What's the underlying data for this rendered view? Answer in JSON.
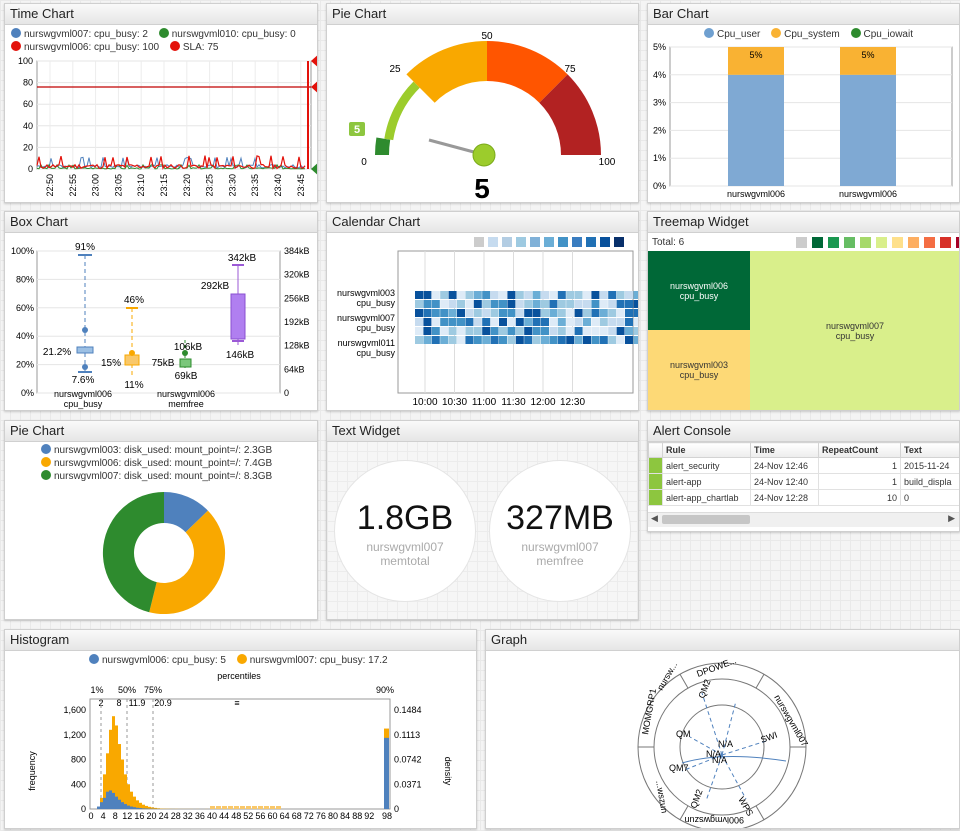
{
  "colors": {
    "blue": "#4f81bd",
    "orange": "#f9a800",
    "green": "#2e8b2e",
    "red": "#e3120b",
    "purple": "#b07ff0",
    "slaRed": "#c00000"
  },
  "time_chart": {
    "title": "Time Chart",
    "legend": [
      "nurswgvml007: cpu_busy: 2",
      "nurswgvml010: cpu_busy: 0",
      "nurswgvml006: cpu_busy: 100",
      "SLA: 75"
    ],
    "y_ticks": [
      "100",
      "80",
      "60",
      "40",
      "20",
      "0"
    ],
    "x_ticks": [
      "22:50",
      "22:55",
      "23:00",
      "23:05",
      "23:10",
      "23:15",
      "23:20",
      "23:25",
      "23:30",
      "23:35",
      "23:40",
      "23:45"
    ],
    "badges": [
      "100",
      "75",
      "0"
    ]
  },
  "gauge": {
    "title": "Pie Chart",
    "ticks": [
      "0",
      "5",
      "25",
      "50",
      "75",
      "100"
    ],
    "value": 5,
    "value_label": "5"
  },
  "bar_chart": {
    "title": "Bar Chart",
    "legend": [
      "Cpu_user",
      "Cpu_system",
      "Cpu_iowait"
    ],
    "y_ticks": [
      "5%",
      "4%",
      "3%",
      "2%",
      "1%",
      "0%"
    ],
    "categories": [
      "nurswgvml006",
      "nurswgvml006"
    ],
    "top_labels": [
      "5%",
      "5%"
    ],
    "chart_data": {
      "type": "bar",
      "categories": [
        "nurswgvml006",
        "nurswgvml006"
      ],
      "series": [
        {
          "name": "Cpu_user",
          "values": [
            4,
            4
          ]
        },
        {
          "name": "Cpu_system",
          "values": [
            1,
            1
          ]
        },
        {
          "name": "Cpu_iowait",
          "values": [
            0,
            0
          ]
        }
      ],
      "ylim": [
        0,
        5
      ]
    }
  },
  "box_chart": {
    "title": "Box Chart",
    "y_left": [
      "100%",
      "80%",
      "60%",
      "40%",
      "20%",
      "0%"
    ],
    "y_right": [
      "384kB",
      "320kB",
      "256kB",
      "192kB",
      "128kB",
      "64kB",
      "0"
    ],
    "labels": [
      "91%",
      "21.2%",
      "7.6%",
      "46%",
      "15%",
      "11%",
      "106kB",
      "75kB",
      "69kB",
      "342kB",
      "292kB",
      "146kB"
    ],
    "x_labels": [
      [
        "nurswgvml006",
        "cpu_busy"
      ],
      [
        "nurswgvml006",
        "memfree"
      ]
    ]
  },
  "calendar": {
    "title": "Calendar Chart",
    "rows": [
      [
        "nurswgvml003",
        "cpu_busy"
      ],
      [
        "nurswgvml007",
        "cpu_busy"
      ],
      [
        "nurswgvml011",
        "cpu_busy"
      ]
    ],
    "x_ticks": [
      "10:00",
      "10:30",
      "11:00",
      "11:30",
      "12:00",
      "12:30"
    ]
  },
  "treemap": {
    "title": "Treemap Widget",
    "total": "Total: 6",
    "cells": [
      [
        "nurswgvml006",
        "cpu_busy"
      ],
      [
        "nurswgvml003",
        "cpu_busy"
      ],
      [
        "nurswgvml007",
        "cpu_busy"
      ]
    ]
  },
  "donut": {
    "title": "Pie Chart",
    "legend": [
      "nurswgvml003: disk_used: mount_point=/: 2.3GB",
      "nurswgvml006: disk_used: mount_point=/: 7.4GB",
      "nurswgvml007: disk_used: mount_point=/: 8.3GB"
    ],
    "chart_data": {
      "type": "pie",
      "labels": [
        "nurswgvml003",
        "nurswgvml006",
        "nurswgvml007"
      ],
      "values": [
        2.3,
        7.4,
        8.3
      ]
    }
  },
  "text_widget": {
    "title": "Text Widget",
    "items": [
      {
        "value": "1.8GB",
        "host": "nurswgvml007",
        "metric": "memtotal"
      },
      {
        "value": "327MB",
        "host": "nurswgvml007",
        "metric": "memfree"
      }
    ]
  },
  "alert_console": {
    "title": "Alert Console",
    "columns": [
      "Rule",
      "Time",
      "RepeatCount",
      "Text"
    ],
    "rows": [
      [
        "alert_security",
        "24-Nov 12:46",
        "1",
        "2015-11-24"
      ],
      [
        "alert-app",
        "24-Nov 12:40",
        "1",
        "build_displa"
      ],
      [
        "alert-app_chartlab",
        "24-Nov 12:28",
        "10",
        "0"
      ]
    ]
  },
  "histogram": {
    "title": "Histogram",
    "legend": [
      "nurswgvml006: cpu_busy: 5",
      "nurswgvml007: cpu_busy: 17.2"
    ],
    "subtitle": "percentiles",
    "percentiles": [
      "1%",
      "50%",
      "75%",
      "90%"
    ],
    "pvals": [
      "2",
      "8",
      "11.9",
      "20.9",
      "≡"
    ],
    "y_left": [
      "1,600",
      "1,200",
      "800",
      "400",
      "0"
    ],
    "y_right": [
      "0.1484",
      "0.1113",
      "0.0742",
      "0.0371",
      "0"
    ],
    "x_ticks": [
      "0",
      "4",
      "8",
      "12",
      "16",
      "20",
      "24",
      "28",
      "32",
      "36",
      "40",
      "44",
      "48",
      "52",
      "56",
      "60",
      "64",
      "68",
      "72",
      "76",
      "80",
      "84",
      "88",
      "92",
      "98"
    ],
    "ylabel": "frequency",
    "y2label": "density"
  },
  "graph": {
    "title": "Graph",
    "outer": [
      "DPOWE...",
      "nursw...",
      "nurswgvml007",
      "900lvmgwszun",
      "...wszun",
      "MOMGRP1"
    ],
    "inner": [
      "QM2",
      "QM",
      "SWI",
      "QM7",
      "QM2",
      "WPS"
    ],
    "center": [
      "N/A",
      "N/A",
      "N/A"
    ]
  }
}
